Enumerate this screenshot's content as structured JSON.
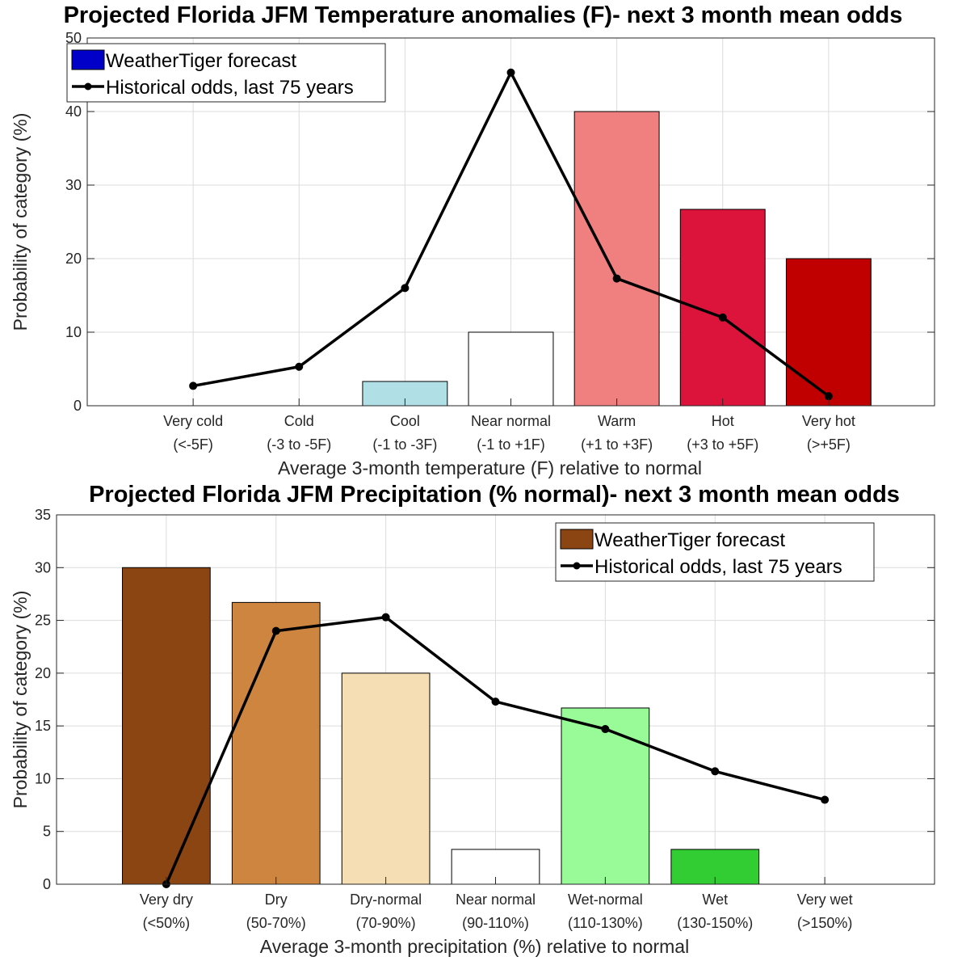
{
  "chart_data": [
    {
      "type": "bar",
      "title": "Projected Florida JFM Temperature anomalies (F)- next 3 month mean odds",
      "xlabel": "Average 3-month temperature (F) relative to normal",
      "ylabel": "Probability of category (%)",
      "ylim": [
        0,
        50
      ],
      "yticks": [
        0,
        10,
        20,
        30,
        40,
        50
      ],
      "grid": true,
      "legend_position": "top-left",
      "categories": [
        {
          "name": "Very cold",
          "range": "(<-5F)"
        },
        {
          "name": "Cold",
          "range": "(-3 to -5F)"
        },
        {
          "name": "Cool",
          "range": "(-1 to -3F)"
        },
        {
          "name": "Near normal",
          "range": "(-1 to +1F)"
        },
        {
          "name": "Warm",
          "range": "(+1 to +3F)"
        },
        {
          "name": "Hot",
          "range": "(+3 to +5F)"
        },
        {
          "name": "Very hot",
          "range": "(>+5F)"
        }
      ],
      "series": [
        {
          "name": "WeatherTiger forecast",
          "kind": "bar",
          "legend_color": "#0000c8",
          "values": [
            0,
            0,
            3.3,
            10,
            40,
            26.7,
            20
          ],
          "colors": [
            "#ffffff",
            "#ffffff",
            "#b0e0e6",
            "#ffffff",
            "#f08080",
            "#dc143c",
            "#c00000"
          ]
        },
        {
          "name": "Historical odds, last 75 years",
          "kind": "line",
          "color": "#000000",
          "values": [
            2.7,
            5.3,
            16,
            45.3,
            17.3,
            12,
            1.3
          ]
        }
      ]
    },
    {
      "type": "bar",
      "title": "Projected Florida JFM Precipitation (% normal)- next 3 month mean odds",
      "xlabel": "Average 3-month precipitation (%) relative to normal",
      "ylabel": "Probability of category (%)",
      "ylim": [
        0,
        35
      ],
      "yticks": [
        0,
        5,
        10,
        15,
        20,
        25,
        30,
        35
      ],
      "grid": true,
      "legend_position": "top-right",
      "categories": [
        {
          "name": "Very dry",
          "range": "(<50%)"
        },
        {
          "name": "Dry",
          "range": "(50-70%)"
        },
        {
          "name": "Dry-normal",
          "range": "(70-90%)"
        },
        {
          "name": "Near normal",
          "range": "(90-110%)"
        },
        {
          "name": "Wet-normal",
          "range": "(110-130%)"
        },
        {
          "name": "Wet",
          "range": "(130-150%)"
        },
        {
          "name": "Very wet",
          "range": "(>150%)"
        }
      ],
      "series": [
        {
          "name": "WeatherTiger forecast",
          "kind": "bar",
          "legend_color": "#8b4513",
          "values": [
            30,
            26.7,
            20,
            3.3,
            16.7,
            3.3,
            0
          ],
          "colors": [
            "#8b4513",
            "#cd853f",
            "#f5deb3",
            "#ffffff",
            "#98fb98",
            "#32cd32",
            "#ffffff"
          ]
        },
        {
          "name": "Historical odds, last 75 years",
          "kind": "line",
          "color": "#000000",
          "values": [
            0,
            24,
            25.3,
            17.3,
            14.7,
            10.7,
            8
          ]
        }
      ]
    }
  ]
}
